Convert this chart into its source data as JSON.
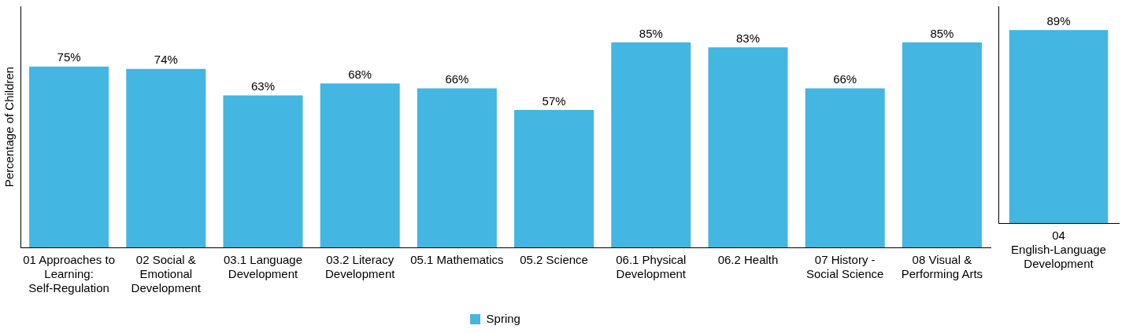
{
  "chart_data": [
    {
      "type": "bar",
      "ylabel": "Percentage of Children",
      "categories": [
        "01 Approaches to Learning: Self-Regulation",
        "02 Social & Emotional Development",
        "03.1 Language Development",
        "03.2 Literacy Development",
        "05.1 Mathematics",
        "05.2 Science",
        "06.1 Physical Development",
        "06.2 Health",
        "07 History - Social Science",
        "08 Visual & Performing Arts"
      ],
      "series": [
        {
          "name": "Spring",
          "color": "#43b6e1",
          "values": [
            75,
            74,
            63,
            68,
            66,
            57,
            85,
            83,
            66,
            85
          ],
          "value_labels": [
            "75%",
            "74%",
            "63%",
            "68%",
            "66%",
            "57%",
            "85%",
            "83%",
            "66%",
            "85%"
          ]
        }
      ],
      "ylim": [
        0,
        100
      ],
      "tick_labels": "x",
      "grid": false,
      "legend": "bottom"
    },
    {
      "type": "bar",
      "categories": [
        "04 English-Language Development"
      ],
      "series": [
        {
          "color": "#43b6e1",
          "values": [
            89
          ],
          "value_labels": [
            "89%"
          ]
        }
      ],
      "ylim": [
        0,
        100
      ],
      "tick_labels": "x",
      "grid": false
    }
  ]
}
